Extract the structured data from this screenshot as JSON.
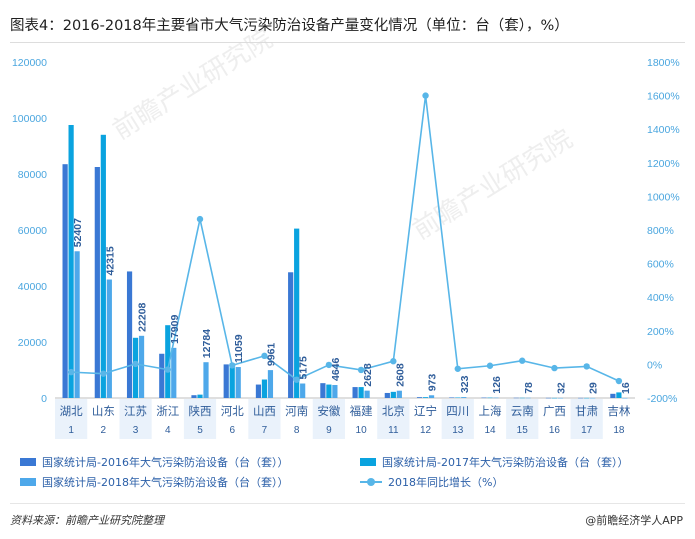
{
  "title": "图表4：2016-2018年主要省市大气污染防治设备产量变化情况（单位：台（套），%）",
  "source": "资料来源：前瞻产业研究院整理",
  "brand": "@前瞻经济学人APP",
  "watermark": "前瞻产业研究院",
  "colors": {
    "s2016": "#3a78d4",
    "s2017": "#0aa3df",
    "s2018": "#4ea8ea",
    "growth": "#58b6e8",
    "label": "#2f5d9a",
    "axis": "#4aa6df"
  },
  "chart_data": {
    "type": "bar",
    "categories": [
      "湖北",
      "山东",
      "江苏",
      "浙江",
      "陕西",
      "河北",
      "山西",
      "河南",
      "安徽",
      "福建",
      "北京",
      "辽宁",
      "四川",
      "上海",
      "云南",
      "广西",
      "甘肃",
      "吉林"
    ],
    "ranks": [
      "1",
      "2",
      "3",
      "4",
      "5",
      "6",
      "7",
      "8",
      "9",
      "10",
      "11",
      "12",
      "13",
      "14",
      "15",
      "16",
      "17",
      "18"
    ],
    "y_left": {
      "min": 0,
      "max": 120000,
      "ticks": [
        "0",
        "20000",
        "40000",
        "60000",
        "80000",
        "100000",
        "120000"
      ]
    },
    "y_right": {
      "min": -200,
      "max": 1800,
      "ticks": [
        "-200%",
        "0%",
        "200%",
        "400%",
        "600%",
        "800%",
        "1000%",
        "1200%",
        "1400%",
        "1600%",
        "1800%"
      ]
    },
    "series": [
      {
        "name": "国家统计局-2016年大气污染防治设备（台（套））",
        "kind": "bar",
        "values": [
          83500,
          82500,
          45200,
          15800,
          1000,
          12000,
          4800,
          44900,
          5300,
          3900,
          1800,
          300,
          200,
          150,
          90,
          60,
          50,
          1500
        ]
      },
      {
        "name": "国家统计局-2017年大气污染防治设备（台（套））",
        "kind": "bar",
        "values": [
          97500,
          94000,
          21500,
          26000,
          1200,
          11800,
          6600,
          60500,
          4800,
          3900,
          2200,
          300,
          180,
          140,
          85,
          45,
          40,
          2000
        ]
      },
      {
        "name": "国家统计局-2018年大气污染防治设备（台（套））",
        "kind": "bar",
        "values": [
          52407,
          42315,
          22208,
          17909,
          12784,
          11059,
          9961,
          5175,
          4646,
          2628,
          2608,
          973,
          323,
          126,
          78,
          32,
          29,
          16
        ],
        "data_labels": [
          "52407",
          "42315",
          "22208",
          "17909",
          "12784",
          "11059",
          "9961",
          "5175",
          "4646",
          "2628",
          "2608",
          "973",
          "323",
          "126",
          "78",
          "32",
          "29",
          "16"
        ]
      },
      {
        "name": "2018年同比增长（%）",
        "kind": "line",
        "axis": "right",
        "values": [
          -46,
          -55,
          3,
          -31,
          865,
          -6,
          51,
          -91,
          -3,
          -33,
          19,
          1600,
          -26,
          -8,
          22,
          -22,
          -12,
          -99
        ]
      }
    ]
  }
}
